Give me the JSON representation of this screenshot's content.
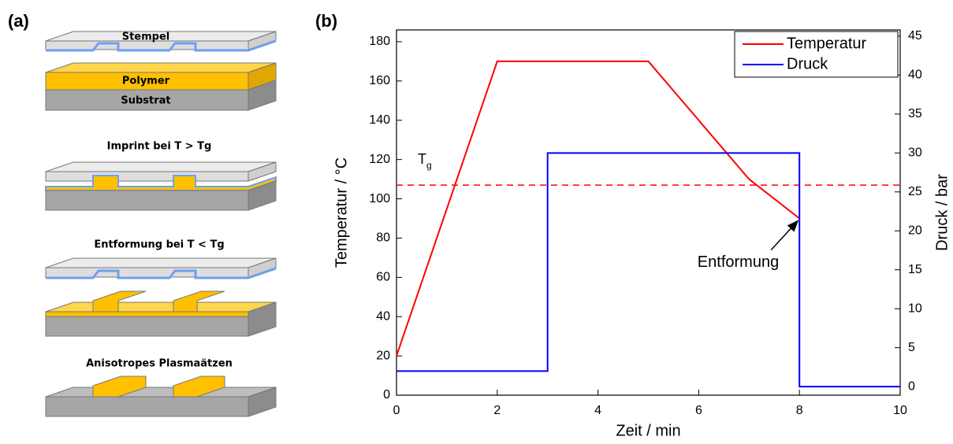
{
  "panel_a": {
    "label": "(a)",
    "stage1": {
      "stamp": "Stempel",
      "polymer": "Polymer",
      "substrate": "Substrat"
    },
    "stage2": {
      "title": "Imprint bei T > Tg"
    },
    "stage3": {
      "title": "Entformung bei T < Tg"
    },
    "stage4": {
      "title": "Anisotropes Plasmaätzen"
    }
  },
  "chart_data": {
    "type": "line",
    "panel_label": "(b)",
    "x_label": "Zeit / min",
    "y_label": "Temperatur / °C",
    "y2_label": "Druck / bar",
    "xlim": [
      0,
      10
    ],
    "xticks": [
      0,
      2,
      4,
      6,
      8,
      10
    ],
    "ylim": [
      0,
      186
    ],
    "yticks": [
      0,
      20,
      40,
      60,
      80,
      100,
      120,
      140,
      160,
      180
    ],
    "y2lim": [
      -1.1,
      45.8
    ],
    "y2ticks": [
      0,
      5,
      10,
      15,
      20,
      25,
      30,
      35,
      40,
      45
    ],
    "legend": "upper right",
    "series": [
      {
        "name": "Temperatur",
        "color": "#ff0000",
        "x": [
          0,
          2,
          5,
          7,
          8
        ],
        "values": [
          20,
          170,
          170,
          110,
          90
        ]
      },
      {
        "name": "Druck",
        "color": "#0000ff",
        "axis": "y2",
        "x": [
          0,
          3,
          3,
          8,
          8,
          10
        ],
        "values": [
          2,
          2,
          30,
          30,
          0,
          0
        ]
      }
    ],
    "reference_line": {
      "value": 107,
      "color": "#ff0000",
      "label": "T",
      "label_sub": "g"
    },
    "annotation": {
      "text": "Entformung"
    }
  }
}
